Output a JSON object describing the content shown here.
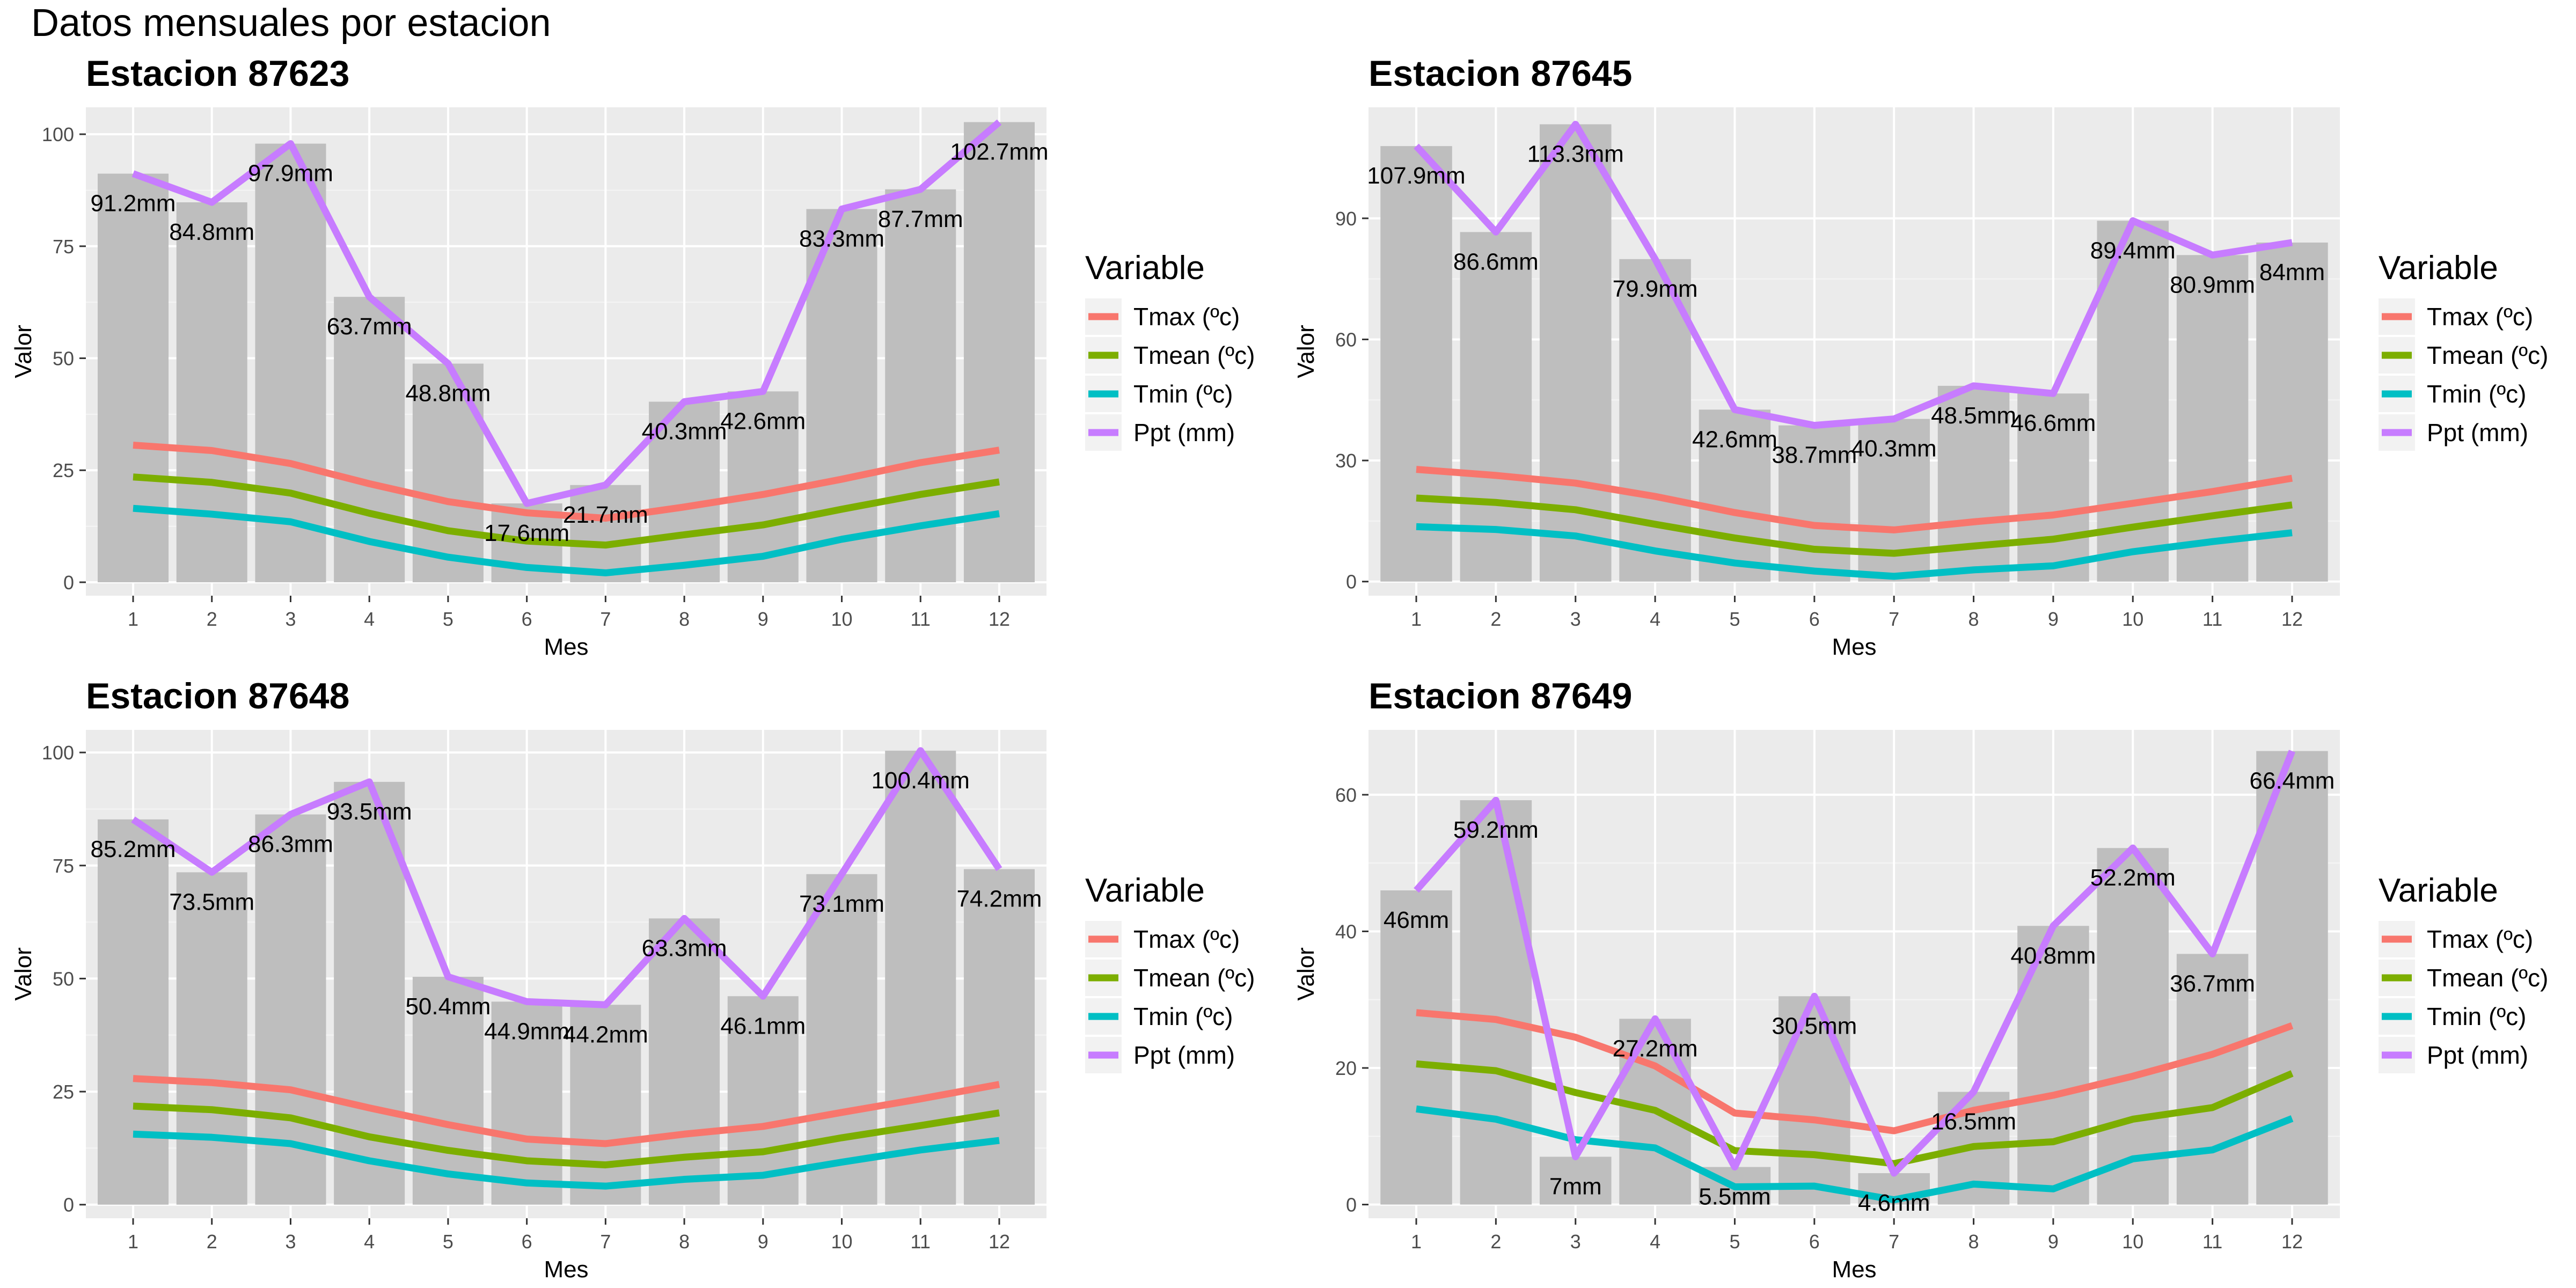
{
  "page_title": "Datos mensuales por estacion",
  "chart_data": [
    {
      "type": "bar",
      "title": "Estacion 87623",
      "xlabel": "Mes",
      "ylabel": "Valor",
      "categories": [
        1,
        2,
        3,
        4,
        5,
        6,
        7,
        8,
        9,
        10,
        11,
        12
      ],
      "ylim": [
        -3,
        106
      ],
      "yticks": [
        0,
        25,
        50,
        75,
        100
      ],
      "bars": [
        91.2,
        84.8,
        97.9,
        63.7,
        48.8,
        17.6,
        21.7,
        40.3,
        42.6,
        83.3,
        87.7,
        102.7
      ],
      "bar_labels": [
        "91.2mm",
        "84.8mm",
        "97.9mm",
        "63.7mm",
        "48.8mm",
        "17.6mm",
        "21.7mm",
        "40.3mm",
        "42.6mm",
        "83.3mm",
        "87.7mm",
        "102.7mm"
      ],
      "series": [
        {
          "name": "Tmax (ºc)",
          "color": "#F8766D",
          "values": [
            30.6,
            29.4,
            26.5,
            22.0,
            18.0,
            15.5,
            14.3,
            16.8,
            19.6,
            23.0,
            26.7,
            29.5
          ]
        },
        {
          "name": "Tmean (ºc)",
          "color": "#7CAE00",
          "values": [
            23.5,
            22.3,
            19.9,
            15.4,
            11.5,
            9.2,
            8.3,
            10.6,
            12.8,
            16.3,
            19.6,
            22.4
          ]
        },
        {
          "name": "Tmin (ºc)",
          "color": "#00BFC4",
          "values": [
            16.5,
            15.2,
            13.5,
            9.1,
            5.6,
            3.3,
            2.1,
            3.8,
            5.8,
            9.6,
            12.6,
            15.3
          ]
        },
        {
          "name": "Ppt (mm)",
          "color": "#C77CFF",
          "values": [
            91.2,
            84.8,
            97.9,
            63.7,
            48.8,
            17.6,
            21.7,
            40.3,
            42.6,
            83.3,
            87.7,
            102.7
          ]
        }
      ],
      "legend": {
        "title": "Variable",
        "position": "right"
      },
      "grid": true
    },
    {
      "type": "bar",
      "title": "Estacion 87645",
      "xlabel": "Mes",
      "ylabel": "Valor",
      "categories": [
        1,
        2,
        3,
        4,
        5,
        6,
        7,
        8,
        9,
        10,
        11,
        12
      ],
      "ylim": [
        -3.5,
        117.5
      ],
      "yticks": [
        0,
        30,
        60,
        90
      ],
      "bars": [
        107.9,
        86.6,
        113.3,
        79.9,
        42.6,
        38.7,
        40.3,
        48.5,
        46.6,
        89.4,
        80.9,
        84
      ],
      "bar_labels": [
        "107.9mm",
        "86.6mm",
        "113.3mm",
        "79.9mm",
        "42.6mm",
        "38.7mm",
        "40.3mm",
        "48.5mm",
        "46.6mm",
        "89.4mm",
        "80.9mm",
        "84mm"
      ],
      "series": [
        {
          "name": "Tmax (ºc)",
          "color": "#F8766D",
          "values": [
            27.8,
            26.3,
            24.4,
            21.1,
            17.1,
            13.9,
            12.8,
            14.8,
            16.5,
            19.4,
            22.3,
            25.6
          ]
        },
        {
          "name": "Tmean (ºc)",
          "color": "#7CAE00",
          "values": [
            20.7,
            19.6,
            17.8,
            14.2,
            10.8,
            8.0,
            7.0,
            8.8,
            10.5,
            13.5,
            16.3,
            19.0
          ]
        },
        {
          "name": "Tmin (ºc)",
          "color": "#00BFC4",
          "values": [
            13.6,
            12.9,
            11.3,
            7.6,
            4.6,
            2.6,
            1.3,
            2.9,
            3.9,
            7.4,
            9.9,
            12.1
          ]
        },
        {
          "name": "Ppt (mm)",
          "color": "#C77CFF",
          "values": [
            107.9,
            86.6,
            113.3,
            79.9,
            42.6,
            38.7,
            40.3,
            48.5,
            46.6,
            89.4,
            80.9,
            84
          ]
        }
      ],
      "legend": {
        "title": "Variable",
        "position": "right"
      },
      "grid": true
    },
    {
      "type": "bar",
      "title": "Estacion 87648",
      "xlabel": "Mes",
      "ylabel": "Valor",
      "categories": [
        1,
        2,
        3,
        4,
        5,
        6,
        7,
        8,
        9,
        10,
        11,
        12
      ],
      "ylim": [
        -3,
        105
      ],
      "yticks": [
        0,
        25,
        50,
        75,
        100
      ],
      "bars": [
        85.2,
        73.5,
        86.3,
        93.5,
        50.4,
        44.9,
        44.2,
        63.3,
        46.1,
        73.1,
        100.4,
        74.2
      ],
      "bar_labels": [
        "85.2mm",
        "73.5mm",
        "86.3mm",
        "93.5mm",
        "50.4mm",
        "44.9mm",
        "44.2mm",
        "63.3mm",
        "46.1mm",
        "73.1mm",
        "100.4mm",
        "74.2mm"
      ],
      "series": [
        {
          "name": "Tmax (ºc)",
          "color": "#F8766D",
          "values": [
            27.9,
            27.0,
            25.4,
            21.4,
            17.7,
            14.5,
            13.5,
            15.6,
            17.3,
            20.4,
            23.4,
            26.6
          ]
        },
        {
          "name": "Tmean (ºc)",
          "color": "#7CAE00",
          "values": [
            21.8,
            21.0,
            19.2,
            15.0,
            12.0,
            9.7,
            8.8,
            10.5,
            11.7,
            14.8,
            17.5,
            20.3
          ]
        },
        {
          "name": "Tmin (ºc)",
          "color": "#00BFC4",
          "values": [
            15.6,
            14.9,
            13.5,
            9.7,
            6.8,
            4.8,
            4.1,
            5.6,
            6.5,
            9.4,
            12.1,
            14.2
          ]
        },
        {
          "name": "Ppt (mm)",
          "color": "#C77CFF",
          "values": [
            85.2,
            73.5,
            86.3,
            93.5,
            50.4,
            44.9,
            44.2,
            63.3,
            46.1,
            73.1,
            100.4,
            74.2
          ]
        }
      ],
      "legend": {
        "title": "Variable",
        "position": "right"
      },
      "grid": true
    },
    {
      "type": "bar",
      "title": "Estacion 87649",
      "xlabel": "Mes",
      "ylabel": "Valor",
      "categories": [
        1,
        2,
        3,
        4,
        5,
        6,
        7,
        8,
        9,
        10,
        11,
        12
      ],
      "ylim": [
        -2,
        69.5
      ],
      "yticks": [
        0,
        20,
        40,
        60
      ],
      "bars": [
        46,
        59.2,
        7,
        27.2,
        5.5,
        30.5,
        4.6,
        16.5,
        40.8,
        52.2,
        36.7,
        66.4
      ],
      "bar_labels": [
        "46mm",
        "59.2mm",
        "7mm",
        "27.2mm",
        "5.5mm",
        "30.5mm",
        "4.6mm",
        "16.5mm",
        "40.8mm",
        "52.2mm",
        "36.7mm",
        "66.4mm"
      ],
      "series": [
        {
          "name": "Tmax (ºc)",
          "color": "#F8766D",
          "values": [
            28.1,
            27.1,
            24.5,
            20.3,
            13.4,
            12.4,
            10.8,
            13.8,
            16.0,
            18.8,
            22.0,
            26.2
          ]
        },
        {
          "name": "Tmean (ºc)",
          "color": "#7CAE00",
          "values": [
            20.6,
            19.6,
            16.4,
            13.8,
            7.9,
            7.3,
            6.0,
            8.5,
            9.2,
            12.5,
            14.2,
            19.2
          ]
        },
        {
          "name": "Tmin (ºc)",
          "color": "#00BFC4",
          "values": [
            14.0,
            12.5,
            9.5,
            8.3,
            2.6,
            2.7,
            0.7,
            3.0,
            2.3,
            6.7,
            8.0,
            12.6
          ]
        },
        {
          "name": "Ppt (mm)",
          "color": "#C77CFF",
          "values": [
            46,
            59.2,
            7,
            27.2,
            5.5,
            30.5,
            4.6,
            16.5,
            40.8,
            52.2,
            36.7,
            66.4
          ]
        }
      ],
      "legend": {
        "title": "Variable",
        "position": "right"
      },
      "grid": true
    }
  ]
}
